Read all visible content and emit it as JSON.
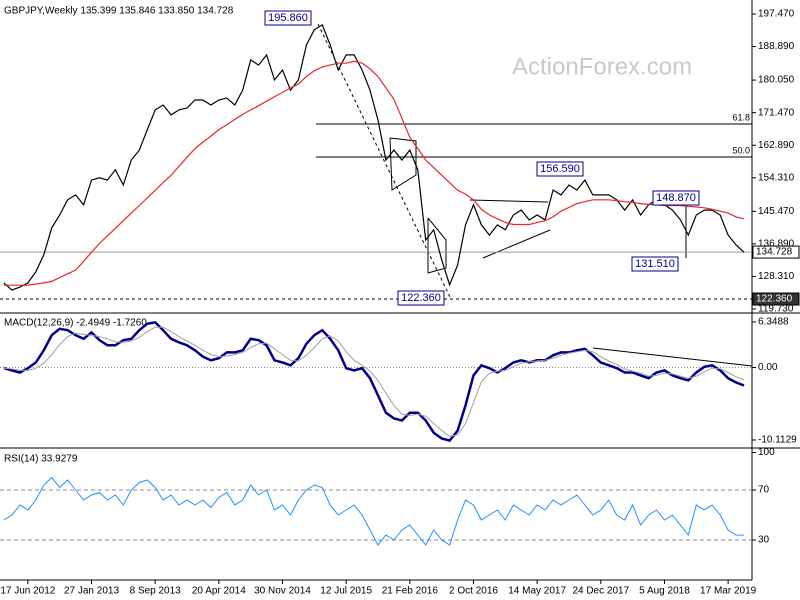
{
  "chart_data": [
    {
      "type": "line",
      "title": "GBPJPY,Weekly  135.399 135.846 133.850 134.728",
      "watermark": "ActionForex.com",
      "x": [
        0,
        4,
        8,
        12,
        16,
        20,
        24,
        28,
        32,
        36,
        40,
        44,
        48,
        52,
        56,
        60,
        64,
        68,
        72,
        76,
        80,
        84,
        88,
        92,
        96,
        100,
        104,
        108,
        112,
        116,
        120,
        124,
        128,
        132,
        136,
        140,
        144,
        148,
        152,
        156,
        160,
        164,
        168,
        172,
        176,
        180,
        184,
        188,
        192,
        196,
        200,
        204,
        208,
        212,
        216,
        220,
        224,
        228,
        232,
        236,
        240,
        244,
        248,
        252,
        256,
        260,
        264,
        268,
        272,
        276,
        280,
        284,
        288,
        292,
        296,
        300,
        304,
        308,
        312,
        316,
        320,
        324,
        328,
        332,
        336,
        340,
        344,
        348,
        352,
        356,
        360,
        364,
        368,
        372
      ],
      "xlim": [
        -2,
        376
      ],
      "ylim": [
        118.94,
        200.63
      ],
      "yticks": [
        {
          "value": 197.47,
          "label": "197.470"
        },
        {
          "value": 188.89,
          "label": "188.890"
        },
        {
          "value": 180.05,
          "label": "180.050"
        },
        {
          "value": 171.47,
          "label": "171.470"
        },
        {
          "value": 162.89,
          "label": "162.890"
        },
        {
          "value": 154.31,
          "label": "154.310"
        },
        {
          "value": 145.47,
          "label": "145.470"
        },
        {
          "value": 136.89,
          "label": "136.890"
        },
        {
          "value": 128.31,
          "label": "128.310"
        },
        {
          "value": 119.73,
          "label": "119.730"
        }
      ],
      "series": [
        {
          "name": "GBPJPY",
          "color": "#000000",
          "values": [
            126.6,
            124.7,
            125.5,
            126.6,
            129.5,
            134,
            141.1,
            144.5,
            148.5,
            149.8,
            147.2,
            153.7,
            154.3,
            153.7,
            156.4,
            152.4,
            159,
            161.6,
            166.9,
            172.2,
            173.5,
            170.9,
            172.2,
            172.7,
            174.8,
            174.8,
            173.5,
            174.8,
            175.3,
            173.5,
            177.4,
            185.4,
            184,
            186.7,
            180.1,
            182.7,
            177.4,
            180.1,
            189.3,
            193.3,
            194.6,
            189.3,
            182.7,
            186.7,
            186.7,
            182.7,
            177.4,
            169.5,
            159,
            161.6,
            159,
            161.6,
            156.4,
            137.9,
            140.6,
            132.7,
            126.1,
            131.3,
            141.9,
            147.2,
            141.9,
            139.2,
            141.9,
            140.6,
            144.5,
            145.8,
            143.2,
            144.5,
            143.2,
            151.1,
            149.8,
            152.4,
            151.1,
            153.7,
            149.8,
            149.8,
            149.8,
            148.5,
            145.8,
            148.5,
            144.5,
            147.2,
            148.5,
            147.2,
            145.8,
            143.2,
            139.2,
            144.5,
            145.8,
            145.8,
            144.5,
            139.2,
            136.6,
            134.7
          ]
        },
        {
          "name": "MA",
          "color": "#e8262b",
          "values": [
            126,
            126,
            126,
            126,
            126.3,
            126.6,
            127,
            128,
            129,
            130,
            132.3,
            134.7,
            137,
            139,
            141,
            143,
            145,
            147,
            149,
            151,
            153,
            155,
            157.3,
            159.7,
            162,
            163.7,
            165.3,
            167,
            168.3,
            169.7,
            171,
            172.2,
            173.3,
            174.5,
            175.7,
            176.8,
            178,
            179,
            181,
            182.5,
            183.5,
            184,
            184.5,
            184.5,
            185,
            184.5,
            183,
            181,
            178,
            175,
            170,
            165,
            162,
            159,
            157,
            155,
            153,
            151,
            150,
            148.5,
            146,
            144.5,
            143.5,
            142.5,
            142,
            142,
            142,
            142.5,
            143,
            144,
            145.5,
            146.5,
            147.5,
            148,
            148.5,
            148.5,
            148.5,
            148.3,
            148,
            147.8,
            147.5,
            147.3,
            147.2,
            147,
            147,
            147,
            146.8,
            146.6,
            146.4,
            146,
            145.5,
            145,
            144,
            143.5
          ]
        }
      ],
      "levels": [
        {
          "value": 168.49,
          "label": "61.8"
        },
        {
          "value": 159.79,
          "label": "50.0"
        }
      ],
      "price_markers": [
        {
          "value": 134.728,
          "label": "134.728"
        },
        {
          "value": 122.36,
          "label": "122.360"
        }
      ],
      "annotations": [
        "195.860",
        "156.590",
        "148.870",
        "131.510",
        "122.360"
      ]
    },
    {
      "type": "line",
      "title": "MACD(12,26,9) -2.4949 -1.7260",
      "x": [
        0,
        4,
        8,
        12,
        16,
        20,
        24,
        28,
        32,
        36,
        40,
        44,
        48,
        52,
        56,
        60,
        64,
        68,
        72,
        76,
        80,
        84,
        88,
        92,
        96,
        100,
        104,
        108,
        112,
        116,
        120,
        124,
        128,
        132,
        136,
        140,
        144,
        148,
        152,
        156,
        160,
        164,
        168,
        172,
        176,
        180,
        184,
        188,
        192,
        196,
        200,
        204,
        208,
        212,
        216,
        220,
        224,
        228,
        232,
        236,
        240,
        244,
        248,
        252,
        256,
        260,
        264,
        268,
        272,
        276,
        280,
        284,
        288,
        292,
        296,
        300,
        304,
        308,
        312,
        316,
        320,
        324,
        328,
        332,
        336,
        340,
        344,
        348,
        352,
        356,
        360,
        364,
        368,
        372
      ],
      "xlim": [
        -2,
        376
      ],
      "ylim": [
        -11.09,
        7.46
      ],
      "yticks": [
        6.3488,
        {
          "value": 0,
          "label": "0.00"
        },
        -10.1129
      ],
      "levels": [
        0
      ],
      "series": [
        {
          "name": "MACD",
          "color": "#00008b",
          "values": [
            -0.1,
            -0.4,
            -0.7,
            -0.1,
            0.7,
            2.4,
            4.5,
            5.4,
            5.2,
            4.5,
            4.0,
            4.9,
            3.8,
            3.1,
            3.1,
            3.8,
            4.0,
            5.2,
            6.1,
            6.3,
            5.2,
            4.0,
            3.5,
            3.1,
            2.4,
            1.5,
            1.0,
            1.3,
            2.1,
            2.1,
            2.4,
            4.0,
            3.8,
            3.1,
            1.0,
            0.7,
            0.3,
            1.3,
            3.3,
            4.5,
            5.2,
            4.0,
            2.4,
            -0.1,
            -0.4,
            -0.1,
            -1.5,
            -3.9,
            -6.3,
            -7.1,
            -7.4,
            -6.3,
            -6.3,
            -7.4,
            -9.1,
            -9.9,
            -10.2,
            -8.8,
            -5.3,
            -1.1,
            0.3,
            -0.1,
            -0.7,
            -0.1,
            0.7,
            1.0,
            0.7,
            1.0,
            1.0,
            1.7,
            2.1,
            2.1,
            2.4,
            2.6,
            1.7,
            0.7,
            0.3,
            -0.1,
            -0.7,
            -0.7,
            -1.1,
            -1.5,
            -0.7,
            -0.4,
            -1.1,
            -1.5,
            -1.8,
            -0.7,
            0.1,
            0.3,
            -0.4,
            -1.5,
            -2.1,
            -2.4949
          ]
        },
        {
          "name": "Signal",
          "color": "#a0a0a0",
          "values": [
            -0.1,
            -0.2,
            -0.4,
            -0.4,
            -0.1,
            0.6,
            1.8,
            3.2,
            4.3,
            4.8,
            4.6,
            4.5,
            4.3,
            4.0,
            3.6,
            3.5,
            3.7,
            4.2,
            5.0,
            5.6,
            5.6,
            5.0,
            4.3,
            3.7,
            3.1,
            2.4,
            1.8,
            1.5,
            1.6,
            1.8,
            2.1,
            2.8,
            3.3,
            3.4,
            2.6,
            1.8,
            1.0,
            0.9,
            1.7,
            2.8,
            4.0,
            4.4,
            3.7,
            2.2,
            1.0,
            0.3,
            -0.5,
            -1.8,
            -3.6,
            -5.3,
            -6.5,
            -6.7,
            -6.5,
            -6.8,
            -7.8,
            -8.8,
            -9.6,
            -9.4,
            -7.8,
            -4.9,
            -2.0,
            -0.8,
            -0.5,
            -0.4,
            0.1,
            0.6,
            0.8,
            0.9,
            1.0,
            1.3,
            1.7,
            2.0,
            2.2,
            2.4,
            2.2,
            1.5,
            0.9,
            0.4,
            -0.2,
            -0.5,
            -0.8,
            -1.2,
            -1.1,
            -0.8,
            -0.9,
            -1.2,
            -1.5,
            -1.2,
            -0.6,
            -0.1,
            -0.2,
            -0.7,
            -1.3,
            -1.726
          ]
        }
      ]
    },
    {
      "type": "line",
      "title": "RSI(14) 33.9279",
      "x": [
        0,
        4,
        8,
        12,
        16,
        20,
        24,
        28,
        32,
        36,
        40,
        44,
        48,
        52,
        56,
        60,
        64,
        68,
        72,
        76,
        80,
        84,
        88,
        92,
        96,
        100,
        104,
        108,
        112,
        116,
        120,
        124,
        128,
        132,
        136,
        140,
        144,
        148,
        152,
        156,
        160,
        164,
        168,
        172,
        176,
        180,
        184,
        188,
        192,
        196,
        200,
        204,
        208,
        212,
        216,
        220,
        224,
        228,
        232,
        236,
        240,
        244,
        248,
        252,
        256,
        260,
        264,
        268,
        272,
        276,
        280,
        284,
        288,
        292,
        296,
        300,
        304,
        308,
        312,
        316,
        320,
        324,
        328,
        332,
        336,
        340,
        344,
        348,
        352,
        356,
        360,
        364,
        368,
        372
      ],
      "xlim": [
        -2,
        376
      ],
      "ylim": [
        -0.4,
        102
      ],
      "yticks": [
        100,
        70,
        30
      ],
      "levels": [
        70,
        30
      ],
      "xticks": [
        {
          "value": 12,
          "label": "17 Jun 2012"
        },
        {
          "value": 44,
          "label": "27 Jan 2013"
        },
        {
          "value": 76,
          "label": "8 Sep 2013"
        },
        {
          "value": 108,
          "label": "20 Apr 2014"
        },
        {
          "value": 140,
          "label": "30 Nov 2014"
        },
        {
          "value": 172,
          "label": "12 Jul 2015"
        },
        {
          "value": 204,
          "label": "21 Feb 2016"
        },
        {
          "value": 236,
          "label": "2 Oct 2016"
        },
        {
          "value": 268,
          "label": "14 May 2017"
        },
        {
          "value": 300,
          "label": "24 Dec 2017"
        },
        {
          "value": 332,
          "label": "5 Aug 2018"
        },
        {
          "value": 364,
          "label": "17 Mar 2019"
        }
      ],
      "series": [
        {
          "name": "RSI",
          "color": "#1e90ff",
          "values": [
            46,
            50,
            58,
            54,
            62,
            74,
            80,
            72,
            78,
            70,
            62,
            66,
            68,
            62,
            66,
            58,
            70,
            76,
            78,
            72,
            62,
            66,
            58,
            62,
            58,
            62,
            56,
            64,
            68,
            58,
            62,
            74,
            66,
            70,
            54,
            58,
            50,
            62,
            70,
            74,
            72,
            58,
            50,
            54,
            58,
            50,
            38,
            26,
            34,
            30,
            38,
            42,
            34,
            26,
            38,
            30,
            26,
            46,
            62,
            58,
            46,
            50,
            54,
            46,
            58,
            54,
            50,
            58,
            54,
            62,
            58,
            62,
            66,
            58,
            50,
            54,
            62,
            50,
            46,
            58,
            42,
            50,
            54,
            46,
            50,
            42,
            34,
            58,
            54,
            58,
            50,
            38,
            34,
            33.9279
          ]
        }
      ]
    }
  ]
}
